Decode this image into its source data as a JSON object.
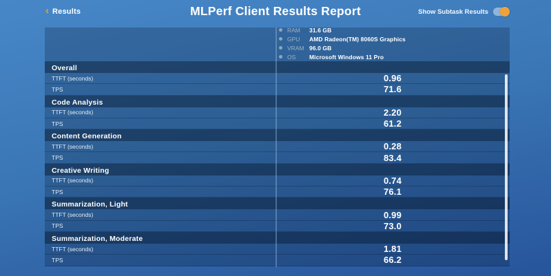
{
  "header": {
    "back_label": "Results",
    "title": "MLPerf Client Results Report",
    "toggle_label": "Show Subtask Results",
    "toggle_state": "on"
  },
  "system_info": {
    "rows": [
      {
        "label": "RAM",
        "value": "31.6 GB"
      },
      {
        "label": "GPU",
        "value": "AMD Radeon(TM) 8060S Graphics"
      },
      {
        "label": "VRAM",
        "value": "96.0 GB"
      },
      {
        "label": "OS",
        "value": "Microsoft Windows 11 Pro"
      }
    ]
  },
  "results": {
    "metric_labels": {
      "ttft": "TTFT (seconds)",
      "tps": "TPS"
    },
    "sections": [
      {
        "name": "Overall",
        "ttft": "0.96",
        "tps": "71.6"
      },
      {
        "name": "Code Analysis",
        "ttft": "2.20",
        "tps": "61.2"
      },
      {
        "name": "Content Generation",
        "ttft": "0.28",
        "tps": "83.4"
      },
      {
        "name": "Creative Writing",
        "ttft": "0.74",
        "tps": "76.1"
      },
      {
        "name": "Summarization, Light",
        "ttft": "0.99",
        "tps": "73.0"
      },
      {
        "name": "Summarization, Moderate",
        "ttft": "1.81",
        "tps": "66.2"
      }
    ]
  },
  "colors": {
    "accent_gold": "#D7A848",
    "toggle_knob": "#EFA23A",
    "page_top": "#4787C8",
    "page_bottom": "#27549B"
  }
}
